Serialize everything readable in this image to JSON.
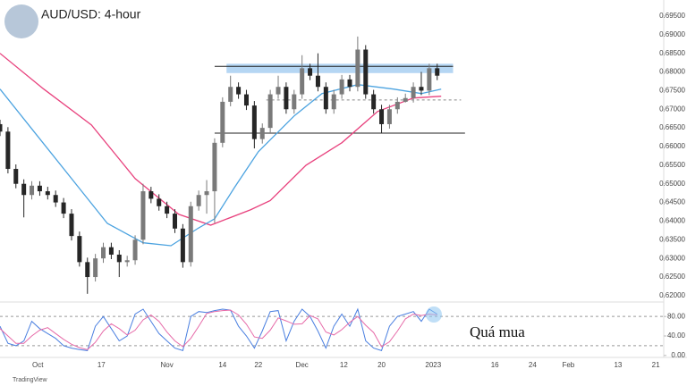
{
  "chart_data": [
    {
      "type": "candlestick",
      "title": "AUD/USD: 4-hour",
      "source": "TradingView",
      "up_color": "#7a7a7a",
      "down_color": "#262626",
      "x": [
        0,
        2,
        4,
        6,
        8,
        10,
        12,
        14,
        16,
        18,
        20,
        22,
        24,
        26,
        28,
        30,
        32,
        34,
        36,
        38,
        40,
        42,
        44,
        46,
        48,
        50,
        52,
        54,
        56,
        58,
        60,
        62,
        64,
        66,
        68,
        70,
        72,
        74,
        76,
        78,
        80,
        82,
        84,
        86,
        88,
        90,
        92,
        94,
        96,
        98,
        100,
        102,
        104,
        106,
        108,
        110
      ],
      "open": [
        0.666,
        0.664,
        0.654,
        0.65,
        0.647,
        0.6495,
        0.648,
        0.647,
        0.645,
        0.642,
        0.636,
        0.629,
        0.625,
        0.63,
        0.633,
        0.631,
        0.629,
        0.6295,
        0.635,
        0.648,
        0.646,
        0.644,
        0.642,
        0.638,
        0.629,
        0.644,
        0.647,
        0.648,
        0.661,
        0.672,
        0.676,
        0.674,
        0.671,
        0.662,
        0.665,
        0.674,
        0.676,
        0.67,
        0.674,
        0.681,
        0.679,
        0.676,
        0.67,
        0.674,
        0.678,
        0.676,
        0.686,
        0.674,
        0.67,
        0.666,
        0.67,
        0.672,
        0.673,
        0.676,
        0.675,
        0.681
      ],
      "high": [
        0.6672,
        0.6652,
        0.6552,
        0.6512,
        0.6507,
        0.6507,
        0.6492,
        0.6482,
        0.6462,
        0.6432,
        0.6372,
        0.6302,
        0.6312,
        0.6342,
        0.6342,
        0.6322,
        0.6307,
        0.6362,
        0.65,
        0.6492,
        0.6472,
        0.6452,
        0.6432,
        0.6392,
        0.6452,
        0.6482,
        0.651,
        0.6622,
        0.6732,
        0.679,
        0.6772,
        0.6752,
        0.6722,
        0.6662,
        0.6752,
        0.679,
        0.6772,
        0.6752,
        0.6845,
        0.6822,
        0.685,
        0.6772,
        0.6752,
        0.6792,
        0.6792,
        0.6895,
        0.6872,
        0.6752,
        0.6712,
        0.6712,
        0.6732,
        0.6742,
        0.6772,
        0.68,
        0.6822,
        0.6822
      ],
      "low": [
        0.6628,
        0.6528,
        0.6488,
        0.641,
        0.6458,
        0.6468,
        0.6458,
        0.6438,
        0.6408,
        0.6348,
        0.6278,
        0.6205,
        0.6238,
        0.6288,
        0.6298,
        0.625,
        0.6278,
        0.6283,
        0.6338,
        0.6448,
        0.6428,
        0.6408,
        0.6368,
        0.6275,
        0.6278,
        0.6428,
        0.642,
        0.6395,
        0.6598,
        0.6708,
        0.6728,
        0.6698,
        0.6595,
        0.6608,
        0.6638,
        0.6728,
        0.6688,
        0.6688,
        0.6728,
        0.6778,
        0.6748,
        0.6688,
        0.6688,
        0.6728,
        0.6748,
        0.6748,
        0.6728,
        0.6688,
        0.6635,
        0.6648,
        0.6688,
        0.6718,
        0.6718,
        0.6738,
        0.6738,
        0.6778
      ],
      "close": [
        0.664,
        0.654,
        0.65,
        0.647,
        0.6495,
        0.648,
        0.647,
        0.645,
        0.642,
        0.636,
        0.629,
        0.625,
        0.63,
        0.633,
        0.631,
        0.629,
        0.6295,
        0.635,
        0.648,
        0.646,
        0.644,
        0.642,
        0.638,
        0.629,
        0.644,
        0.647,
        0.648,
        0.661,
        0.672,
        0.676,
        0.674,
        0.671,
        0.662,
        0.665,
        0.674,
        0.676,
        0.67,
        0.674,
        0.681,
        0.679,
        0.676,
        0.67,
        0.674,
        0.678,
        0.676,
        0.686,
        0.674,
        0.67,
        0.666,
        0.67,
        0.672,
        0.673,
        0.676,
        0.675,
        0.681,
        0.679
      ],
      "lines": [
        {
          "color": "#e8417d",
          "x": [
            0,
            11,
            23,
            34,
            45,
            53,
            63,
            68,
            77,
            86,
            95,
            104,
            111
          ],
          "values": [
            0.685,
            0.6754,
            0.6658,
            0.6514,
            0.6418,
            0.6389,
            0.643,
            0.6455,
            0.655,
            0.661,
            0.6694,
            0.673,
            0.6735
          ]
        },
        {
          "color": "#4ca3e0",
          "x": [
            0,
            9,
            18,
            27,
            36,
            43,
            50,
            54,
            59,
            65,
            74,
            81,
            90,
            99,
            106,
            111
          ],
          "values": [
            0.6754,
            0.6634,
            0.6514,
            0.6394,
            0.6342,
            0.6334,
            0.6382,
            0.6406,
            0.649,
            0.6586,
            0.6682,
            0.6742,
            0.6766,
            0.6754,
            0.6742,
            0.6754
          ]
        }
      ],
      "zone": {
        "color": "#9cc8ef",
        "low": 0.6797,
        "high": 0.6822,
        "from": 57,
        "to": 114
      },
      "levels": [
        {
          "value": 0.6815,
          "from": 54,
          "to": 114,
          "style": "solid"
        },
        {
          "value": 0.6725,
          "from": 67,
          "to": 116,
          "style": "dashed"
        },
        {
          "value": 0.6636,
          "from": 54,
          "to": 117,
          "style": "solid"
        }
      ],
      "xlim": [
        0,
        167
      ],
      "ylim": [
        0.6183,
        0.6993
      ],
      "xticks": [
        {
          "value": 9.5,
          "label": "Oct"
        },
        {
          "value": 25.5,
          "label": "17"
        },
        {
          "value": 42,
          "label": "Nov"
        },
        {
          "value": 56,
          "label": "14"
        },
        {
          "value": 65,
          "label": "22"
        },
        {
          "value": 76,
          "label": "Dec"
        },
        {
          "value": 86.5,
          "label": "12"
        },
        {
          "value": 96,
          "label": "20"
        },
        {
          "value": 109,
          "label": "2023"
        },
        {
          "value": 124.5,
          "label": "16"
        },
        {
          "value": 134,
          "label": "24"
        },
        {
          "value": 143,
          "label": "Feb"
        },
        {
          "value": 155.5,
          "label": "13"
        },
        {
          "value": 165,
          "label": "21"
        }
      ],
      "yticks": [
        {
          "value": 0.62,
          "label": "0.62000"
        },
        {
          "value": 0.625,
          "label": "0.62500"
        },
        {
          "value": 0.63,
          "label": "0.63000"
        },
        {
          "value": 0.635,
          "label": "0.63500"
        },
        {
          "value": 0.64,
          "label": "0.64000"
        },
        {
          "value": 0.645,
          "label": "0.64500"
        },
        {
          "value": 0.65,
          "label": "0.65000"
        },
        {
          "value": 0.655,
          "label": "0.65500"
        },
        {
          "value": 0.66,
          "label": "0.66000"
        },
        {
          "value": 0.665,
          "label": "0.66500"
        },
        {
          "value": 0.67,
          "label": "0.67000"
        },
        {
          "value": 0.675,
          "label": "0.67500"
        },
        {
          "value": 0.68,
          "label": "0.68000"
        },
        {
          "value": 0.685,
          "label": "0.68500"
        },
        {
          "value": 0.69,
          "label": "0.69000"
        },
        {
          "value": 0.695,
          "label": "0.69500"
        }
      ]
    },
    {
      "type": "line",
      "annotation": "Quá mua",
      "x": [
        0,
        2,
        4,
        6,
        8,
        10,
        12,
        14,
        16,
        18,
        20,
        22,
        24,
        26,
        28,
        30,
        32,
        34,
        36,
        38,
        40,
        42,
        44,
        46,
        48,
        50,
        52,
        54,
        56,
        58,
        60,
        62,
        64,
        66,
        68,
        70,
        72,
        74,
        76,
        78,
        80,
        82,
        84,
        86,
        88,
        90,
        92,
        94,
        96,
        98,
        100,
        102,
        104,
        106,
        108,
        110
      ],
      "series": [
        {
          "color": "#4a7fe0",
          "values": [
            60,
            25,
            20,
            30,
            70,
            55,
            45,
            35,
            20,
            15,
            12,
            10,
            60,
            80,
            55,
            30,
            40,
            85,
            95,
            70,
            45,
            30,
            15,
            10,
            80,
            90,
            88,
            92,
            95,
            93,
            60,
            40,
            15,
            50,
            90,
            92,
            30,
            70,
            95,
            80,
            50,
            15,
            60,
            85,
            60,
            95,
            30,
            15,
            10,
            60,
            80,
            85,
            90,
            70,
            95,
            85
          ]
        },
        {
          "color": "#e66aa8",
          "values": [
            55,
            40,
            25,
            25,
            40,
            52,
            57,
            45,
            33,
            23,
            16,
            12,
            27,
            50,
            65,
            55,
            42,
            52,
            73,
            83,
            70,
            48,
            30,
            18,
            35,
            60,
            86,
            90,
            92,
            93,
            83,
            64,
            38,
            35,
            52,
            77,
            71,
            64,
            65,
            82,
            75,
            48,
            42,
            53,
            68,
            80,
            62,
            47,
            18,
            28,
            50,
            75,
            85,
            82,
            85,
            83
          ]
        }
      ],
      "levels": [
        80,
        20
      ],
      "ylim": [
        -4,
        106
      ],
      "yticks": [
        {
          "value": 0,
          "label": "0.00"
        },
        {
          "value": 40,
          "label": "40.00"
        },
        {
          "value": 80,
          "label": "80.00"
        }
      ]
    }
  ]
}
